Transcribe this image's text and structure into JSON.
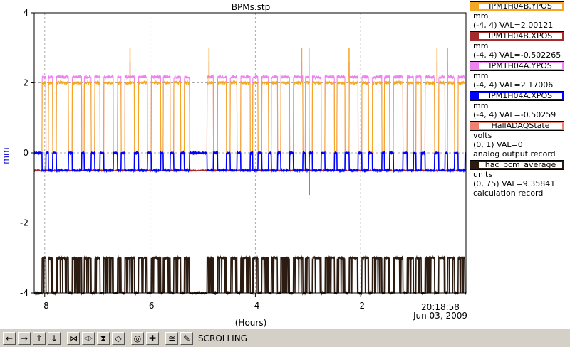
{
  "chart_data": {
    "type": "line",
    "title": "BPMs.stp",
    "xlabel": "(Hours)",
    "ylabel": "mm",
    "xlim": [
      -8.2,
      0
    ],
    "ylim": [
      -4,
      4
    ],
    "x_ticks": [
      "-8",
      "-6",
      "-4",
      "-2"
    ],
    "y_ticks": [
      "4",
      "2",
      "0",
      "-2",
      "-4"
    ],
    "timestamp": "20:18:58",
    "date": "Jun 03, 2009",
    "grid": true,
    "beam_on_intervals": [
      [
        -8.05,
        -7.98
      ],
      [
        -7.93,
        -7.85
      ],
      [
        -7.78,
        -7.55
      ],
      [
        -7.48,
        -7.3
      ],
      [
        -7.25,
        -7.12
      ],
      [
        -7.05,
        -6.95
      ],
      [
        -6.88,
        -6.7
      ],
      [
        -6.62,
        -6.55
      ],
      [
        -6.48,
        -6.3
      ],
      [
        -6.22,
        -6.05
      ],
      [
        -5.98,
        -5.8
      ],
      [
        -5.75,
        -5.62
      ],
      [
        -5.55,
        -5.42
      ],
      [
        -5.35,
        -5.25
      ],
      [
        -4.92,
        -4.8
      ],
      [
        -4.72,
        -4.55
      ],
      [
        -4.48,
        -4.35
      ],
      [
        -4.28,
        -4.1
      ],
      [
        -4.05,
        -3.95
      ],
      [
        -3.88,
        -3.75
      ],
      [
        -3.7,
        -3.58
      ],
      [
        -3.52,
        -3.35
      ],
      [
        -3.28,
        -3.1
      ],
      [
        -3.05,
        -2.98
      ],
      [
        -2.92,
        -2.75
      ],
      [
        -2.68,
        -2.5
      ],
      [
        -2.45,
        -2.3
      ],
      [
        -2.22,
        -2.05
      ],
      [
        -1.98,
        -1.85
      ],
      [
        -1.78,
        -1.6
      ],
      [
        -1.55,
        -1.45
      ],
      [
        -1.38,
        -1.2
      ],
      [
        -1.12,
        -1.0
      ],
      [
        -0.95,
        -0.85
      ],
      [
        -0.78,
        -0.6
      ],
      [
        -0.52,
        -0.4
      ],
      [
        -0.35,
        -0.22
      ],
      [
        -0.15,
        -0.02
      ]
    ],
    "spikes": [
      -6.38,
      -4.88,
      -3.12,
      -2.98,
      -2.22,
      -0.55,
      -0.35
    ],
    "series": [
      {
        "name": "IPM1H04B.YPOS",
        "color": "#f5a623",
        "on_value": 2.0,
        "off_value": 0.0
      },
      {
        "name": "IPM1H04B.XPOS",
        "color": "#a52a2a",
        "on_value": -0.5,
        "off_value": -0.5
      },
      {
        "name": "IPM1H04A.YPOS",
        "color": "#ee82ee",
        "on_value": 2.17,
        "off_value": 0.0
      },
      {
        "name": "IPM1H04A.XPOS",
        "color": "#0000ff",
        "on_value": -0.5,
        "off_value": 0.0
      },
      {
        "name": "HallADAQState",
        "color": "#f08070",
        "on_value": -4.0,
        "off_value": -4.0
      },
      {
        "name": "hac_bcm_average",
        "color": "#2b1b10",
        "on_value": -3.0,
        "off_value": -4.0
      }
    ]
  },
  "legend": [
    {
      "name": "IPM1H04B.YPOS",
      "color": "#f5a623",
      "units": "mm",
      "range_val": "(-4, 4) VAL=2.00121",
      "extra": ""
    },
    {
      "name": "IPM1H04B.XPOS",
      "color": "#a52a2a",
      "units": "mm",
      "range_val": "(-4, 4) VAL=-0.502265",
      "extra": ""
    },
    {
      "name": "IPM1H04A.YPOS",
      "color": "#ee82ee",
      "units": "mm",
      "range_val": "(-4, 4) VAL=2.17006",
      "extra": ""
    },
    {
      "name": "IPM1H04A.XPOS",
      "color": "#0000ff",
      "units": "mm",
      "range_val": "(-4, 4) VAL=-0.50259",
      "extra": ""
    },
    {
      "name": "HallADAQState",
      "color": "#f08070",
      "units": "volts",
      "range_val": "(0, 1) VAL=0",
      "extra": "analog output record"
    },
    {
      "name": "hac_bcm_average",
      "color": "#2b1b10",
      "units": "units",
      "range_val": "(0, 75) VAL=9.35841",
      "extra": "calculation record"
    }
  ],
  "toolbar": {
    "buttons": [
      {
        "icon": "arrow-left-icon",
        "glyph": "←"
      },
      {
        "icon": "arrow-right-icon",
        "glyph": "→"
      },
      {
        "icon": "arrow-up-icon",
        "glyph": "↑"
      },
      {
        "icon": "arrow-down-icon",
        "glyph": "↓"
      },
      {
        "icon": "zoom-in-horizontal-icon",
        "glyph": "⋈"
      },
      {
        "icon": "zoom-out-horizontal-icon",
        "glyph": "◁▷"
      },
      {
        "icon": "zoom-in-vertical-icon",
        "glyph": "⧗"
      },
      {
        "icon": "zoom-out-vertical-icon",
        "glyph": "◇"
      },
      {
        "icon": "auto-scale-icon",
        "glyph": "◎"
      },
      {
        "icon": "add-point-icon",
        "glyph": "✚"
      },
      {
        "icon": "graph-mode-icon",
        "glyph": "≅"
      },
      {
        "icon": "config-icon",
        "glyph": "✎"
      }
    ],
    "status": "SCROLLING"
  }
}
